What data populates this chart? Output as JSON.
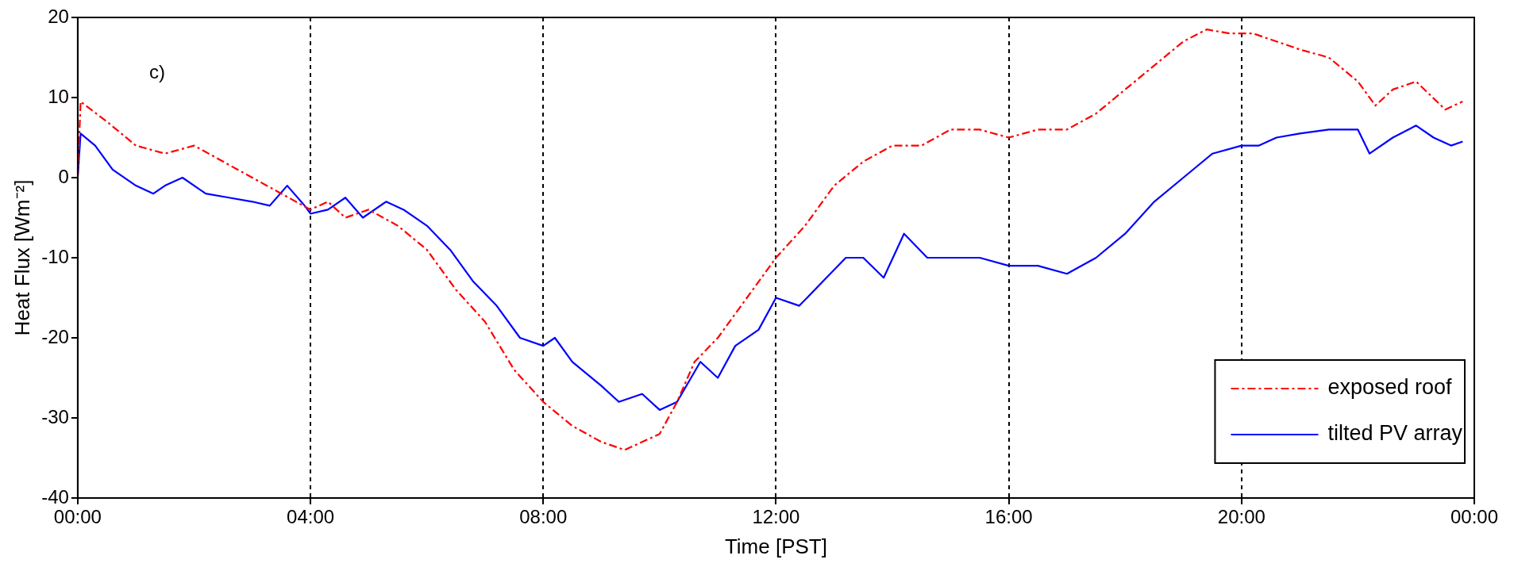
{
  "chart_data": {
    "type": "line",
    "xlabel": "Time [PST]",
    "ylabel": "Heat Flux [Wm⁻²]",
    "annotations": [
      "c)"
    ],
    "xlim": [
      0,
      24
    ],
    "xticks": [
      {
        "value": 0,
        "label": "00:00"
      },
      {
        "value": 4,
        "label": "04:00"
      },
      {
        "value": 8,
        "label": "08:00"
      },
      {
        "value": 12,
        "label": "12:00"
      },
      {
        "value": 16,
        "label": "16:00"
      },
      {
        "value": 20,
        "label": "20:00"
      },
      {
        "value": 24,
        "label": "00:00"
      }
    ],
    "ylim": [
      -40,
      20
    ],
    "yticks": [
      -40,
      -30,
      -20,
      -10,
      0,
      10,
      20
    ],
    "grid": "x",
    "legend": "bottom right",
    "series": [
      {
        "name": "exposed roof",
        "color": "#ff0000",
        "line_style": "dashed",
        "x": [
          0,
          0.05,
          0.5,
          1,
          1.5,
          2,
          2.5,
          3,
          3.5,
          4,
          4.3,
          4.6,
          5,
          5.5,
          6,
          6.5,
          7,
          7.5,
          8,
          8.5,
          9,
          9.4,
          10,
          10.3,
          10.6,
          11,
          11.5,
          12,
          12.5,
          13,
          13.5,
          14,
          14.5,
          15,
          15.5,
          16,
          16.5,
          17,
          17.5,
          18,
          18.5,
          19,
          19.4,
          19.8,
          20.2,
          20.6,
          21,
          21.5,
          22,
          22.3,
          22.6,
          23,
          23.5,
          23.8
        ],
        "values": [
          0,
          9.5,
          7,
          4,
          3,
          4,
          2,
          0,
          -2,
          -4,
          -3,
          -5,
          -4,
          -6,
          -9,
          -14,
          -18,
          -24,
          -28,
          -31,
          -33,
          -34,
          -32,
          -28,
          -23,
          -20,
          -15,
          -10,
          -6,
          -1,
          2,
          4,
          4,
          6,
          6,
          5,
          6,
          6,
          8,
          11,
          14,
          17,
          18.5,
          18,
          18,
          17,
          16,
          15,
          12,
          9,
          11,
          12,
          8.5,
          9.5
        ]
      },
      {
        "name": "tilted PV array",
        "color": "#0000ff",
        "line_style": "solid",
        "x": [
          0,
          0.05,
          0.3,
          0.6,
          1,
          1.3,
          1.5,
          1.8,
          2.2,
          2.6,
          3,
          3.3,
          3.6,
          3.9,
          4,
          4.3,
          4.6,
          4.9,
          5.3,
          5.6,
          6,
          6.4,
          6.8,
          7.2,
          7.6,
          8,
          8.2,
          8.5,
          9,
          9.3,
          9.7,
          10,
          10.3,
          10.7,
          11,
          11.3,
          11.7,
          12,
          12.4,
          12.8,
          13.2,
          13.5,
          13.85,
          14.2,
          14.6,
          15,
          15.5,
          16,
          16.5,
          17,
          17.5,
          18,
          18.5,
          19,
          19.5,
          20,
          20.3,
          20.6,
          21,
          21.5,
          22,
          22.2,
          22.6,
          23,
          23.3,
          23.6,
          23.8
        ],
        "values": [
          0,
          5.5,
          4,
          1,
          -1,
          -2,
          -1,
          0,
          -2,
          -2.5,
          -3,
          -3.5,
          -1,
          -3.5,
          -4.5,
          -4,
          -2.5,
          -5,
          -3,
          -4,
          -6,
          -9,
          -13,
          -16,
          -20,
          -21,
          -20,
          -23,
          -26,
          -28,
          -27,
          -29,
          -28,
          -23,
          -25,
          -21,
          -19,
          -15,
          -16,
          -13,
          -10,
          -10,
          -12.5,
          -7,
          -10,
          -10,
          -10,
          -11,
          -11,
          -12,
          -10,
          -7,
          -3,
          0,
          3,
          4,
          4,
          5,
          5.5,
          6,
          6,
          3,
          5,
          6.5,
          5,
          4,
          4.5
        ]
      }
    ]
  }
}
